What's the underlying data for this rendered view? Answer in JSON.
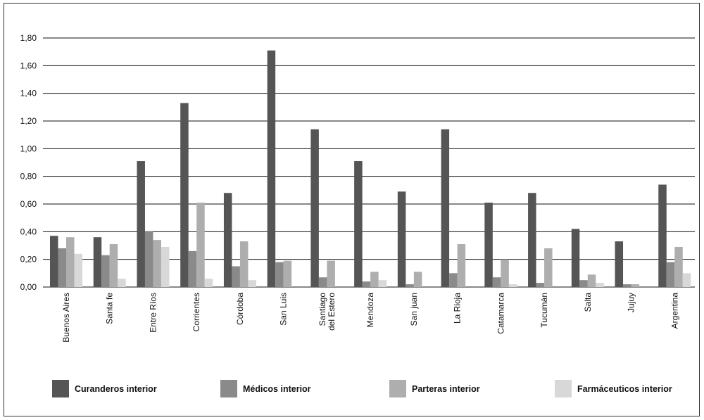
{
  "chart_data": {
    "type": "bar",
    "title": "",
    "xlabel": "",
    "ylabel": "",
    "ylim": [
      0,
      1.8
    ],
    "yticks": [
      "0,00",
      "0,20",
      "0,40",
      "0,60",
      "0,80",
      "1,00",
      "1,20",
      "1,40",
      "1,60",
      "1,80"
    ],
    "grid": true,
    "legend_position": "bottom",
    "categories": [
      [
        "Buenos Aires"
      ],
      [
        "Santa fe"
      ],
      [
        "Entre Ríos"
      ],
      [
        "Corrientes"
      ],
      [
        "Córdoba"
      ],
      [
        "San Luis"
      ],
      [
        "Santiago",
        "del Estero"
      ],
      [
        "Mendoza"
      ],
      [
        "San juan"
      ],
      [
        "La Rioja"
      ],
      [
        "Catamarca"
      ],
      [
        "Tucumán"
      ],
      [
        "Salta"
      ],
      [
        "Jujuy"
      ],
      [
        "Argentina"
      ]
    ],
    "series": [
      {
        "name": "Curanderos interior",
        "color": "#555555",
        "values": [
          0.37,
          0.36,
          0.91,
          1.33,
          0.68,
          1.71,
          1.14,
          0.91,
          0.69,
          1.14,
          0.61,
          0.68,
          0.42,
          0.33,
          0.74
        ]
      },
      {
        "name": "Médicos interior",
        "color": "#8a8a8a",
        "values": [
          0.28,
          0.23,
          0.4,
          0.26,
          0.15,
          0.18,
          0.07,
          0.04,
          0.02,
          0.1,
          0.07,
          0.03,
          0.05,
          0.02,
          0.18
        ]
      },
      {
        "name": "Parteras interior",
        "color": "#aeaeae",
        "values": [
          0.36,
          0.31,
          0.34,
          0.61,
          0.33,
          0.19,
          0.19,
          0.11,
          0.11,
          0.31,
          0.2,
          0.28,
          0.09,
          0.02,
          0.29
        ]
      },
      {
        "name": "Farmáceuticos interior",
        "color": "#d8d8d8",
        "values": [
          0.24,
          0.06,
          0.29,
          0.06,
          0.05,
          0.0,
          0.0,
          0.05,
          0.0,
          0.0,
          0.02,
          0.0,
          0.03,
          0.0,
          0.1
        ]
      }
    ]
  }
}
